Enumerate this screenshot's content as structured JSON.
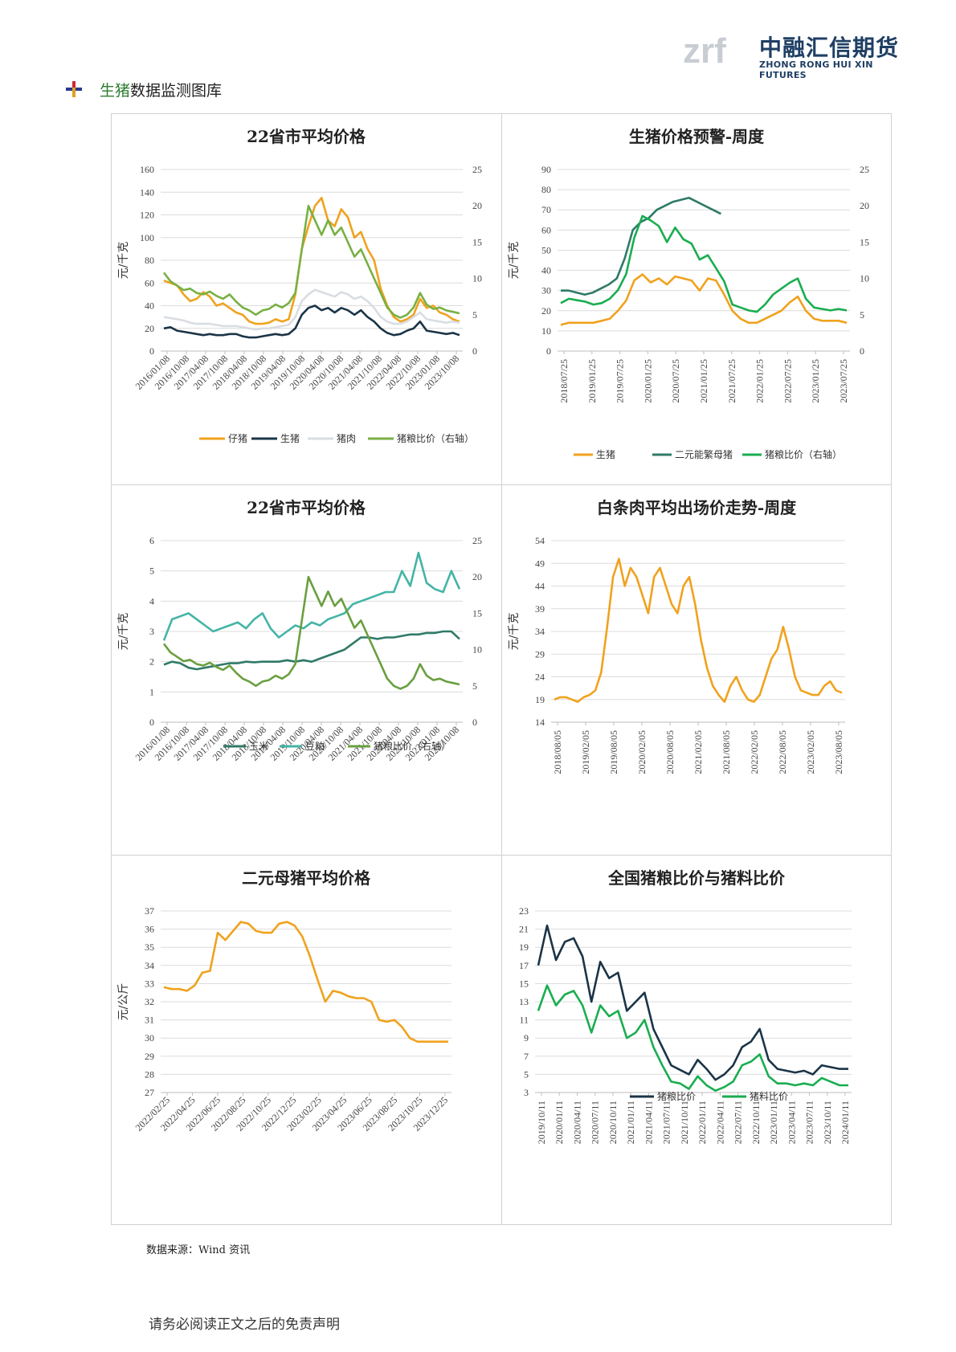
{
  "header": {
    "logo_mark": "zrf",
    "logo_name": "中融汇信期货",
    "logo_en": "ZHONG RONG HUI XIN FUTURES",
    "section_title_a": "生猪",
    "section_title_b": "数据监测图库"
  },
  "footer": {
    "source": "数据来源：Wind 资讯",
    "disclaimer": "请务必阅读正文之后的免责声明"
  },
  "colors": {
    "orange": "#f0a21e",
    "navy": "#1b3447",
    "lightgray": "#d9dde2",
    "green": "#78b043",
    "teal": "#2f7a68",
    "brightgreen": "#1aad50",
    "cyan": "#44b4a6",
    "darkgreen": "#6a9f3f"
  },
  "chart_data": [
    {
      "type": "line",
      "title": "22省市平均价格",
      "ylabel": "元/千克",
      "ylim": [
        0,
        160
      ],
      "y_ticks": [
        "0",
        "20",
        "40",
        "60",
        "80",
        "100",
        "120",
        "140",
        "160"
      ],
      "y2lim": [
        0,
        25
      ],
      "y2_ticks": [
        "0",
        "5",
        "10",
        "15",
        "20",
        "25"
      ],
      "x_ticks": [
        "2016/01/08",
        "2016/10/08",
        "2017/04/08",
        "2017/10/08",
        "2018/04/08",
        "2018/10/08",
        "2019/04/08",
        "2019/10/08",
        "2020/04/08",
        "2020/10/08",
        "2021/04/08",
        "2021/10/08",
        "2022/04/08",
        "2022/10/08",
        "2023/01/08",
        "2023/10/08"
      ],
      "series": [
        {
          "name": "仔猪",
          "color": "orange",
          "axis": "left",
          "values": [
            62,
            60,
            58,
            50,
            44,
            46,
            52,
            48,
            40,
            42,
            38,
            34,
            32,
            26,
            24,
            24,
            25,
            28,
            26,
            28,
            50,
            90,
            110,
            128,
            135,
            115,
            110,
            125,
            118,
            100,
            105,
            90,
            80,
            55,
            40,
            30,
            26,
            28,
            32,
            46,
            38,
            40,
            34,
            32,
            28,
            26
          ]
        },
        {
          "name": "生猪",
          "color": "navy",
          "axis": "left",
          "values": [
            20,
            21,
            18,
            17,
            16,
            15,
            14,
            15,
            14,
            14,
            15,
            15,
            13,
            12,
            12,
            13,
            14,
            15,
            14,
            15,
            20,
            32,
            38,
            40,
            36,
            38,
            34,
            38,
            36,
            32,
            36,
            30,
            26,
            20,
            16,
            14,
            15,
            18,
            20,
            26,
            18,
            17,
            16,
            15,
            16,
            14
          ]
        },
        {
          "name": "猪肉",
          "color": "lightgray",
          "axis": "left",
          "values": [
            30,
            29,
            28,
            27,
            25,
            24,
            24,
            24,
            23,
            22,
            22,
            22,
            21,
            20,
            19,
            20,
            20,
            21,
            22,
            23,
            30,
            44,
            50,
            54,
            52,
            50,
            48,
            52,
            50,
            46,
            48,
            44,
            38,
            30,
            26,
            24,
            24,
            26,
            30,
            34,
            28,
            27,
            26,
            25,
            26,
            25
          ]
        },
        {
          "name": "猪粮比价（右轴）",
          "color": "green",
          "axis": "right",
          "values": [
            10.8,
            9.6,
            9.0,
            8.4,
            8.6,
            8.0,
            7.8,
            8.2,
            7.6,
            7.2,
            7.8,
            6.8,
            6.0,
            5.6,
            5.0,
            5.6,
            5.8,
            6.4,
            6.0,
            6.6,
            8.0,
            14,
            20,
            18,
            16,
            18,
            16,
            17,
            15,
            13,
            14,
            12,
            10,
            8,
            6,
            5,
            4.6,
            5,
            6,
            8,
            6.4,
            5.8,
            6.0,
            5.6,
            5.4,
            5.2
          ]
        }
      ]
    },
    {
      "type": "line",
      "title": "生猪价格预警-周度",
      "ylabel": "元/千克",
      "ylim": [
        0,
        90
      ],
      "y_ticks": [
        "0",
        "10",
        "20",
        "30",
        "40",
        "50",
        "60",
        "70",
        "80",
        "90"
      ],
      "y2lim": [
        0,
        25
      ],
      "y2_ticks": [
        "0",
        "5",
        "10",
        "15",
        "20",
        "25"
      ],
      "x_ticks": [
        "2018/07/25",
        "2019/01/25",
        "2019/07/25",
        "2020/01/25",
        "2020/07/25",
        "2021/01/25",
        "2021/07/25",
        "2022/01/25",
        "2022/07/25",
        "2023/01/25",
        "2023/07/25"
      ],
      "series": [
        {
          "name": "生猪",
          "color": "orange",
          "axis": "left",
          "values": [
            13,
            14,
            14,
            14,
            14,
            15,
            16,
            20,
            25,
            35,
            38,
            34,
            36,
            33,
            37,
            36,
            35,
            30,
            36,
            35,
            28,
            20,
            16,
            14,
            14,
            16,
            18,
            20,
            24,
            27,
            20,
            16,
            15,
            15,
            15,
            14
          ]
        },
        {
          "name": "二元能繁母猪",
          "color": "teal",
          "axis": "left",
          "values": [
            30,
            30,
            29,
            28,
            29,
            31,
            33,
            36,
            46,
            60,
            64,
            66,
            70,
            72,
            74,
            75,
            76,
            74,
            72,
            70,
            68
          ]
        },
        {
          "name": "猪粮比价（右轴）",
          "color": "brightgreen",
          "axis": "right",
          "values": [
            6.6,
            7.2,
            7.0,
            6.8,
            6.4,
            6.6,
            7.2,
            8.4,
            10.6,
            15.6,
            18.6,
            18.0,
            17.2,
            15.0,
            17.0,
            15.4,
            14.8,
            12.6,
            13.2,
            11.4,
            9.6,
            6.4,
            6.0,
            5.6,
            5.4,
            6.4,
            7.8,
            8.6,
            9.4,
            10.0,
            7.2,
            6.0,
            5.8,
            5.6,
            5.8,
            5.6
          ]
        }
      ]
    },
    {
      "type": "line",
      "title": "22省市平均价格",
      "ylabel": "元/千克",
      "ylim": [
        0,
        6
      ],
      "y_ticks": [
        "0",
        "1",
        "2",
        "3",
        "4",
        "5",
        "6"
      ],
      "y2lim": [
        0,
        25
      ],
      "y2_ticks": [
        "0",
        "5",
        "10",
        "15",
        "20",
        "25"
      ],
      "x_ticks": [
        "2016/01/08",
        "2016/10/08",
        "2017/04/08",
        "2017/10/08",
        "2018/04/08",
        "2018/10/08",
        "2019/04/08",
        "2019/10/08",
        "2020/04/08",
        "2020/10/08",
        "2021/04/08",
        "2021/10/08",
        "2022/04/08",
        "2022/10/08",
        "2023/01/08",
        "2023/10/08"
      ],
      "series": [
        {
          "name": "玉米",
          "color": "teal",
          "axis": "left",
          "values": [
            1.9,
            2.0,
            1.95,
            1.8,
            1.75,
            1.8,
            1.85,
            1.9,
            1.95,
            1.95,
            2.0,
            1.98,
            2.0,
            2.0,
            2.0,
            2.05,
            2.0,
            2.05,
            2.0,
            2.1,
            2.2,
            2.3,
            2.4,
            2.6,
            2.8,
            2.8,
            2.75,
            2.8,
            2.8,
            2.85,
            2.9,
            2.9,
            2.95,
            2.95,
            3.0,
            3.0,
            2.75
          ]
        },
        {
          "name": "豆粕",
          "color": "cyan",
          "axis": "left",
          "values": [
            2.7,
            3.4,
            3.5,
            3.6,
            3.4,
            3.2,
            3.0,
            3.1,
            3.2,
            3.3,
            3.1,
            3.4,
            3.6,
            3.1,
            2.8,
            3.0,
            3.2,
            3.1,
            3.3,
            3.2,
            3.4,
            3.5,
            3.6,
            3.9,
            4.0,
            4.1,
            4.2,
            4.3,
            4.3,
            5.0,
            4.5,
            5.6,
            4.6,
            4.4,
            4.3,
            5.0,
            4.4
          ]
        },
        {
          "name": "猪粮比价（右轴）",
          "color": "darkgreen",
          "axis": "right",
          "values": [
            10.8,
            9.6,
            9.0,
            8.4,
            8.6,
            8.0,
            7.8,
            8.2,
            7.6,
            7.2,
            7.8,
            6.8,
            6.0,
            5.6,
            5.0,
            5.6,
            5.8,
            6.4,
            6.0,
            6.6,
            8.0,
            14,
            20,
            18,
            16,
            18,
            16,
            17,
            15,
            13,
            14,
            12,
            10,
            8,
            6,
            5,
            4.6,
            5,
            6,
            8,
            6.4,
            5.8,
            6.0,
            5.6,
            5.4,
            5.2
          ]
        }
      ]
    },
    {
      "type": "line",
      "title": "白条肉平均出场价走势-周度",
      "ylabel": "元/千克",
      "ylim": [
        14,
        54
      ],
      "y_ticks": [
        "14",
        "19",
        "24",
        "29",
        "34",
        "39",
        "44",
        "49",
        "54"
      ],
      "x_ticks": [
        "2018/08/05",
        "2019/02/05",
        "2019/08/05",
        "2020/02/05",
        "2020/08/05",
        "2021/02/05",
        "2021/08/05",
        "2022/02/05",
        "2022/08/05",
        "2023/02/05",
        "2023/08/05"
      ],
      "series": [
        {
          "name": "白条肉",
          "color": "orange",
          "axis": "left",
          "values": [
            19,
            19.5,
            19.5,
            19,
            18.5,
            19.5,
            20,
            21,
            25,
            35,
            46,
            50,
            44,
            48,
            46,
            42,
            38,
            46,
            48,
            44,
            40,
            38,
            44,
            46,
            40,
            32,
            26,
            22,
            20,
            18.5,
            22,
            24,
            21,
            19,
            18.5,
            20,
            24,
            28,
            30,
            35,
            30,
            24,
            21,
            20.5,
            20,
            20,
            22,
            23,
            21,
            20.5
          ]
        }
      ]
    },
    {
      "type": "line",
      "title": "二元母猪平均价格",
      "ylabel": "元/公斤",
      "ylim": [
        27,
        37
      ],
      "y_ticks": [
        "27",
        "28",
        "29",
        "30",
        "31",
        "32",
        "33",
        "34",
        "35",
        "36",
        "37"
      ],
      "x_ticks": [
        "2022/02/25",
        "2022/04/25",
        "2022/06/25",
        "2022/08/25",
        "2022/10/25",
        "2022/12/25",
        "2023/02/25",
        "2023/04/25",
        "2023/06/25",
        "2023/08/25",
        "2023/10/25",
        "2023/12/25"
      ],
      "series": [
        {
          "name": "二元母猪",
          "color": "orange",
          "axis": "left",
          "values": [
            32.8,
            32.7,
            32.7,
            32.6,
            32.9,
            33.6,
            33.7,
            35.8,
            35.4,
            35.9,
            36.4,
            36.3,
            35.9,
            35.8,
            35.8,
            36.3,
            36.4,
            36.2,
            35.6,
            34.5,
            33.2,
            32.0,
            32.6,
            32.5,
            32.3,
            32.2,
            32.2,
            32.0,
            31.0,
            30.9,
            31.0,
            30.6,
            30.0,
            29.8,
            29.8,
            29.8,
            29.8,
            29.8
          ]
        }
      ]
    },
    {
      "type": "line",
      "title": "全国猪粮比价与猪料比价",
      "ylim": [
        3,
        23
      ],
      "y_ticks": [
        "3",
        "5",
        "7",
        "9",
        "11",
        "13",
        "15",
        "17",
        "19",
        "21",
        "23"
      ],
      "x_ticks": [
        "2019/10/11",
        "2020/01/11",
        "2020/04/11",
        "2020/07/11",
        "2020/10/11",
        "2021/01/11",
        "2021/04/11",
        "2021/07/11",
        "2021/10/11",
        "2022/01/11",
        "2022/04/11",
        "2022/07/11",
        "2022/10/11",
        "2023/01/11",
        "2023/04/11",
        "2023/07/11",
        "2023/10/11",
        "2024/01/11"
      ],
      "series": [
        {
          "name": "猪粮比价",
          "color": "navy",
          "axis": "left",
          "values": [
            17.0,
            21.4,
            17.6,
            19.6,
            20.0,
            18.0,
            13.0,
            17.4,
            15.6,
            16.2,
            12.0,
            13.0,
            14.0,
            10.0,
            8.0,
            6.0,
            5.5,
            5.0,
            6.6,
            5.6,
            4.4,
            5.0,
            6.0,
            8.0,
            8.6,
            10.0,
            6.6,
            5.6,
            5.4,
            5.2,
            5.4,
            5.0,
            6.0,
            5.8,
            5.6,
            5.6
          ]
        },
        {
          "name": "猪料比价",
          "color": "brightgreen",
          "axis": "left",
          "values": [
            12.0,
            14.8,
            12.6,
            13.8,
            14.2,
            12.6,
            9.6,
            12.6,
            11.4,
            12.0,
            9.0,
            9.6,
            11.0,
            8.0,
            6.0,
            4.2,
            4.0,
            3.4,
            4.8,
            3.8,
            3.2,
            3.6,
            4.2,
            6.0,
            6.4,
            7.2,
            4.8,
            4.0,
            4.0,
            3.8,
            4.0,
            3.8,
            4.6,
            4.2,
            3.8,
            3.8
          ]
        }
      ]
    }
  ]
}
